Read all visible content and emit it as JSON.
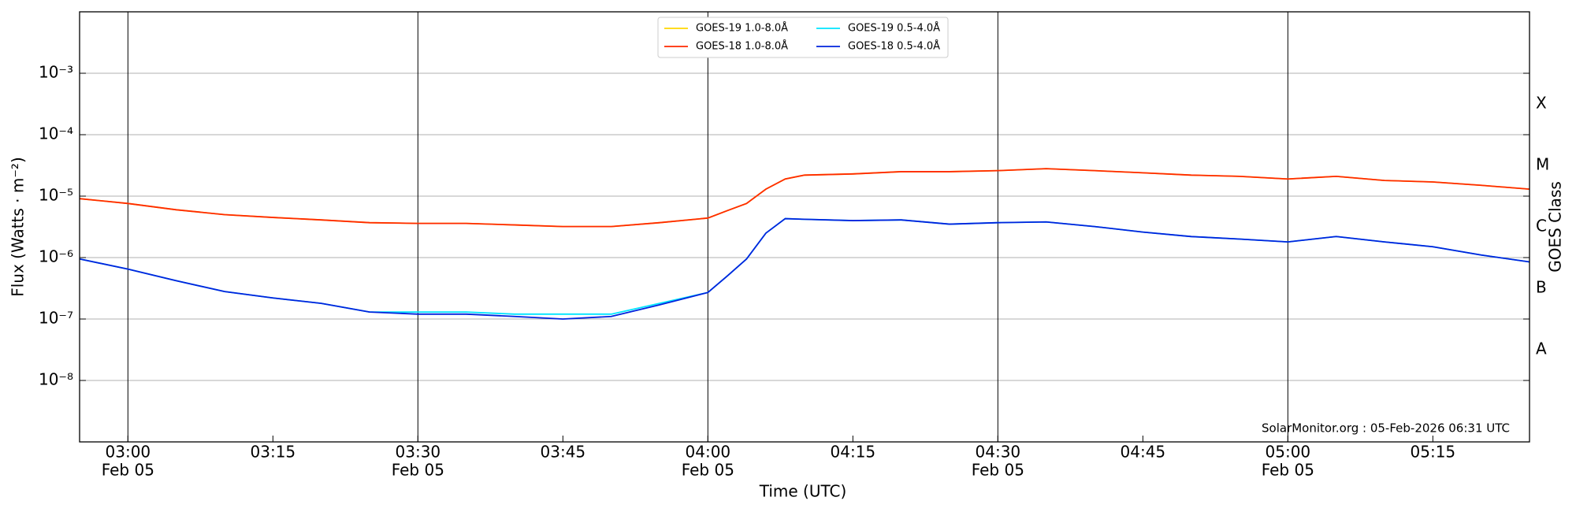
{
  "chart_data": {
    "type": "line",
    "ylabel": "Flux (Watts · m⁻²)",
    "xlabel": "Time (UTC)",
    "y2label": "GOES Class",
    "footer": "SolarMonitor.org : 05-Feb-2026 06:31 UTC",
    "ylog": true,
    "grid": true,
    "legend": "upper center",
    "x": [
      "02:55",
      "03:00",
      "03:05",
      "03:10",
      "03:15",
      "03:20",
      "03:25",
      "03:30",
      "03:35",
      "03:40",
      "03:45",
      "03:50",
      "03:55",
      "04:00",
      "04:02",
      "04:04",
      "04:06",
      "04:08",
      "04:10",
      "04:15",
      "04:20",
      "04:25",
      "04:30",
      "04:35",
      "04:40",
      "04:45",
      "04:50",
      "04:55",
      "05:00",
      "05:05",
      "05:10",
      "05:15",
      "05:20",
      "05:25"
    ],
    "xlim": [
      "02:55",
      "05:25"
    ],
    "xticks": [
      {
        "value": "03:00",
        "label": "03:00",
        "date": "Feb 05"
      },
      {
        "value": "03:15",
        "label": "03:15"
      },
      {
        "value": "03:30",
        "label": "03:30",
        "date": "Feb 05"
      },
      {
        "value": "03:45",
        "label": "03:45"
      },
      {
        "value": "04:00",
        "label": "04:00",
        "date": "Feb 05"
      },
      {
        "value": "04:15",
        "label": "04:15"
      },
      {
        "value": "04:30",
        "label": "04:30",
        "date": "Feb 05"
      },
      {
        "value": "04:45",
        "label": "04:45"
      },
      {
        "value": "05:00",
        "label": "05:00",
        "date": "Feb 05"
      },
      {
        "value": "05:15",
        "label": "05:15"
      }
    ],
    "ylim": [
      1e-09,
      0.01
    ],
    "yticks": [
      {
        "value": 0.001,
        "label": "10⁻³"
      },
      {
        "value": 0.0001,
        "label": "10⁻⁴"
      },
      {
        "value": 1e-05,
        "label": "10⁻⁵"
      },
      {
        "value": 1e-06,
        "label": "10⁻⁶"
      },
      {
        "value": 1e-07,
        "label": "10⁻⁷"
      },
      {
        "value": 1e-08,
        "label": "10⁻⁸"
      }
    ],
    "y2lim": [
      1e-09,
      0.01
    ],
    "y2ticks": [
      {
        "value": 0.000316,
        "label": "X"
      },
      {
        "value": 3.16e-05,
        "label": "M"
      },
      {
        "value": 3.16e-06,
        "label": "C"
      },
      {
        "value": 3.16e-07,
        "label": "B"
      },
      {
        "value": 3.16e-08,
        "label": "A"
      }
    ],
    "series": [
      {
        "name": "GOES-19 1.0-8.0Å",
        "color": "#ffd700",
        "values": [
          9.1e-06,
          7.6e-06,
          6e-06,
          5e-06,
          4.5e-06,
          4.1e-06,
          3.7e-06,
          3.6e-06,
          3.6e-06,
          3.4e-06,
          3.2e-06,
          3.2e-06,
          3.7e-06,
          4.4e-06,
          5.8e-06,
          7.6e-06,
          1.3e-05,
          1.9e-05,
          2.2e-05,
          2.3e-05,
          2.5e-05,
          2.5e-05,
          2.6e-05,
          2.8e-05,
          2.6e-05,
          2.4e-05,
          2.2e-05,
          2.1e-05,
          1.9e-05,
          2.1e-05,
          1.8e-05,
          1.7e-05,
          1.5e-05,
          1.3e-05
        ]
      },
      {
        "name": "GOES-18 1.0-8.0Å",
        "color": "#ff2a00",
        "values": [
          9.1e-06,
          7.6e-06,
          6e-06,
          5e-06,
          4.5e-06,
          4.1e-06,
          3.7e-06,
          3.6e-06,
          3.6e-06,
          3.4e-06,
          3.2e-06,
          3.2e-06,
          3.7e-06,
          4.4e-06,
          5.8e-06,
          7.6e-06,
          1.3e-05,
          1.9e-05,
          2.2e-05,
          2.3e-05,
          2.5e-05,
          2.5e-05,
          2.6e-05,
          2.8e-05,
          2.6e-05,
          2.4e-05,
          2.2e-05,
          2.1e-05,
          1.9e-05,
          2.1e-05,
          1.8e-05,
          1.7e-05,
          1.5e-05,
          1.3e-05
        ]
      },
      {
        "name": "GOES-19 0.5-4.0Å",
        "color": "#00e5ff",
        "values": [
          9.5e-07,
          6.5e-07,
          4.2e-07,
          2.8e-07,
          2.2e-07,
          1.8e-07,
          1.3e-07,
          1.3e-07,
          1.3e-07,
          1.2e-07,
          1.2e-07,
          1.2e-07,
          1.8e-07,
          2.7e-07,
          5e-07,
          9.5e-07,
          2.5e-06,
          4.3e-06,
          4.2e-06,
          4e-06,
          4.1e-06,
          3.5e-06,
          3.7e-06,
          3.8e-06,
          3.2e-06,
          2.6e-06,
          2.2e-06,
          2e-06,
          1.8e-06,
          2.2e-06,
          1.8e-06,
          1.5e-06,
          1.1e-06,
          8.5e-07
        ]
      },
      {
        "name": "GOES-18 0.5-4.0Å",
        "color": "#0022dd",
        "values": [
          9.5e-07,
          6.5e-07,
          4.2e-07,
          2.8e-07,
          2.2e-07,
          1.8e-07,
          1.3e-07,
          1.2e-07,
          1.2e-07,
          1.1e-07,
          1e-07,
          1.1e-07,
          1.7e-07,
          2.7e-07,
          5e-07,
          9.5e-07,
          2.5e-06,
          4.3e-06,
          4.2e-06,
          4e-06,
          4.1e-06,
          3.5e-06,
          3.7e-06,
          3.8e-06,
          3.2e-06,
          2.6e-06,
          2.2e-06,
          2e-06,
          1.8e-06,
          2.2e-06,
          1.8e-06,
          1.5e-06,
          1.1e-06,
          8.5e-07
        ]
      }
    ]
  }
}
